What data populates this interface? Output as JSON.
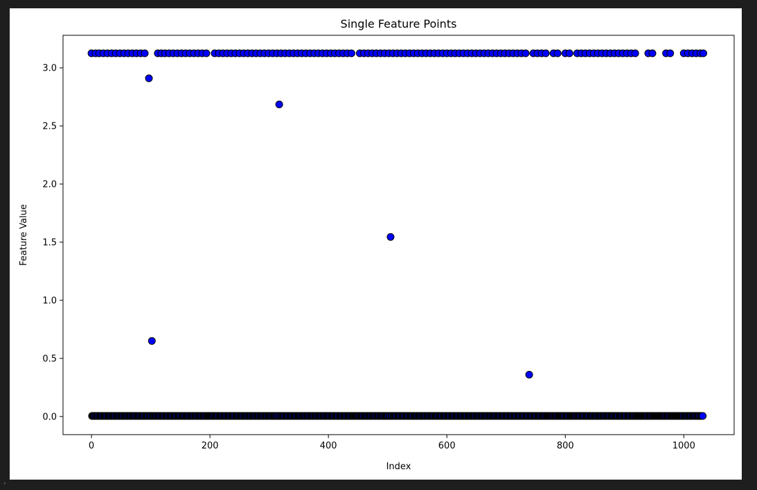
{
  "chart_data": {
    "type": "scatter",
    "title": "Single Feature Points",
    "xlabel": "Index",
    "ylabel": "Feature Value",
    "xlim": [
      -48,
      1085
    ],
    "ylim": [
      -0.156,
      3.28
    ],
    "xticks": [
      0,
      200,
      400,
      600,
      800,
      1000
    ],
    "yticks": [
      0.0,
      0.5,
      1.0,
      1.5,
      2.0,
      2.5,
      3.0
    ],
    "xtick_labels": [
      "0",
      "200",
      "400",
      "600",
      "800",
      "1000"
    ],
    "ytick_labels": [
      "0.0",
      "0.5",
      "1.0",
      "1.5",
      "2.0",
      "2.5",
      "3.0"
    ],
    "grid": false,
    "marker_fill": "#0000ff",
    "marker_edge": "#000000",
    "n_points": 1034,
    "high_value": 3.125,
    "low_value": 0.005,
    "outliers": [
      {
        "x": 97,
        "y": 2.91
      },
      {
        "x": 102,
        "y": 0.65
      },
      {
        "x": 317,
        "y": 2.685
      },
      {
        "x": 505,
        "y": 1.545
      },
      {
        "x": 739,
        "y": 0.36
      }
    ],
    "high_x": [
      0,
      7,
      13,
      20,
      27,
      34,
      41,
      48,
      55,
      62,
      69,
      76,
      83,
      90,
      112,
      118,
      124,
      131,
      138,
      145,
      152,
      159,
      166,
      173,
      180,
      187,
      194,
      208,
      215,
      222,
      229,
      236,
      243,
      250,
      257,
      264,
      271,
      278,
      285,
      292,
      299,
      306,
      313,
      320,
      327,
      334,
      341,
      348,
      355,
      362,
      369,
      376,
      383,
      390,
      397,
      404,
      411,
      418,
      425,
      432,
      439,
      453,
      460,
      467,
      474,
      481,
      488,
      495,
      502,
      509,
      516,
      523,
      530,
      537,
      544,
      551,
      558,
      565,
      572,
      579,
      586,
      593,
      600,
      607,
      614,
      621,
      628,
      635,
      642,
      649,
      656,
      663,
      670,
      677,
      684,
      691,
      698,
      705,
      712,
      719,
      726,
      733,
      746,
      753,
      760,
      767,
      780,
      787,
      800,
      807,
      820,
      827,
      834,
      841,
      848,
      855,
      862,
      869,
      876,
      883,
      890,
      897,
      904,
      911,
      918,
      940,
      947,
      970,
      977,
      1000,
      1007,
      1014,
      1021,
      1028,
      1033
    ]
  },
  "watermark_glyph": "‹"
}
